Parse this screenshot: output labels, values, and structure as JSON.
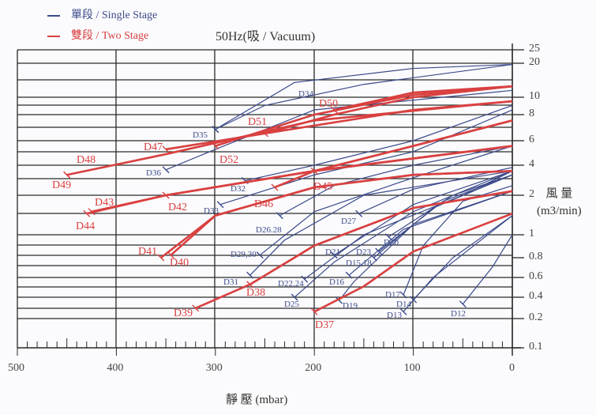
{
  "legend": {
    "single": {
      "label": "單段 / Single Stage",
      "color": "#3b4a8a"
    },
    "two": {
      "label": "雙段 / Two Stage",
      "color": "#d94040"
    }
  },
  "title": "50Hz(吸 / Vacuum)",
  "y_axis_label_line1": "風 量",
  "y_axis_label_line2": "(m3/min)",
  "x_axis_label": "靜 壓 (mbar)",
  "chart_data": {
    "type": "line",
    "title": "50Hz(吸 / Vacuum)",
    "xlabel": "靜 壓 (mbar)",
    "ylabel": "風 量 (m3/min)",
    "xlim": [
      500,
      0
    ],
    "ylim": [
      0.1,
      25
    ],
    "yscale": "log",
    "x_ticks": [
      "500",
      "400",
      "300",
      "200",
      "100",
      "0"
    ],
    "y_ticks": [
      "25",
      "20",
      "10",
      "8",
      "6",
      "4",
      "2",
      "1",
      "0.8",
      "0.6",
      "0.4",
      "0.2",
      "0.1"
    ],
    "legend": [
      "單段 / Single Stage",
      "雙段 / Two Stage"
    ],
    "grid": true,
    "series": [
      {
        "name": "D34",
        "stage": "single",
        "points": [
          [
            300,
            6.8
          ],
          [
            220,
            13.5
          ],
          [
            100,
            18
          ],
          [
            0,
            19.5
          ]
        ]
      },
      {
        "name": "D35",
        "stage": "single",
        "points": [
          [
            300,
            6.8
          ],
          [
            250,
            9
          ],
          [
            150,
            13
          ],
          [
            0,
            19.5
          ]
        ]
      },
      {
        "name": "D36",
        "stage": "single",
        "points": [
          [
            350,
            3.6
          ],
          [
            300,
            5.2
          ],
          [
            200,
            8.5
          ],
          [
            0,
            11.5
          ]
        ]
      },
      {
        "name": "D32",
        "stage": "single",
        "points": [
          [
            270,
            2.8
          ],
          [
            200,
            4
          ],
          [
            100,
            6
          ],
          [
            0,
            9
          ]
        ]
      },
      {
        "name": "D33",
        "stage": "single",
        "points": [
          [
            295,
            1.7
          ],
          [
            200,
            3.2
          ],
          [
            100,
            5
          ],
          [
            0,
            8.5
          ]
        ]
      },
      {
        "name": "D26.28",
        "stage": "single",
        "points": [
          [
            235,
            1.4
          ],
          [
            180,
            2.5
          ],
          [
            100,
            4
          ],
          [
            0,
            5.5
          ]
        ]
      },
      {
        "name": "D29,30",
        "stage": "single",
        "points": [
          [
            255,
            0.82
          ],
          [
            200,
            1.5
          ],
          [
            100,
            3
          ],
          [
            0,
            5.5
          ]
        ]
      },
      {
        "name": "D31",
        "stage": "single",
        "points": [
          [
            265,
            0.62
          ],
          [
            230,
            0.95
          ],
          [
            150,
            2
          ],
          [
            0,
            3.5
          ]
        ]
      },
      {
        "name": "D27",
        "stage": "single",
        "points": [
          [
            155,
            1.45
          ],
          [
            100,
            2.3
          ],
          [
            0,
            3.8
          ]
        ]
      },
      {
        "name": "D21",
        "stage": "single",
        "points": [
          [
            180,
            0.82
          ],
          [
            100,
            1.7
          ],
          [
            0,
            3.5
          ]
        ]
      },
      {
        "name": "D22,24",
        "stage": "single",
        "points": [
          [
            210,
            0.58
          ],
          [
            150,
            1.0
          ],
          [
            50,
            2
          ],
          [
            0,
            3.5
          ]
        ]
      },
      {
        "name": "D25",
        "stage": "single",
        "points": [
          [
            220,
            0.4
          ],
          [
            180,
            0.75
          ],
          [
            100,
            1.5
          ],
          [
            0,
            3.5
          ]
        ]
      },
      {
        "name": "D20",
        "stage": "single",
        "points": [
          [
            125,
            0.98
          ],
          [
            60,
            2
          ],
          [
            0,
            3.2
          ]
        ]
      },
      {
        "name": "D23",
        "stage": "single",
        "points": [
          [
            135,
            0.85
          ],
          [
            70,
            1.8
          ],
          [
            0,
            3.2
          ]
        ]
      },
      {
        "name": "D15,18",
        "stage": "single",
        "points": [
          [
            140,
            0.8
          ],
          [
            80,
            1.6
          ],
          [
            0,
            3.2
          ]
        ]
      },
      {
        "name": "D16",
        "stage": "single",
        "points": [
          [
            165,
            0.62
          ],
          [
            110,
            1.1
          ],
          [
            0,
            2.2
          ]
        ]
      },
      {
        "name": "D19",
        "stage": "single",
        "points": [
          [
            175,
            0.36
          ],
          [
            160,
            0.55
          ],
          [
            100,
            1.2
          ],
          [
            0,
            2.2
          ]
        ]
      },
      {
        "name": "D17",
        "stage": "single",
        "points": [
          [
            110,
            0.42
          ],
          [
            90,
            0.9
          ],
          [
            50,
            1.8
          ],
          [
            0,
            2.5
          ]
        ]
      },
      {
        "name": "D14",
        "stage": "single",
        "points": [
          [
            100,
            0.37
          ],
          [
            60,
            0.8
          ],
          [
            0,
            1.4
          ]
        ]
      },
      {
        "name": "D13",
        "stage": "single",
        "points": [
          [
            110,
            0.25
          ],
          [
            80,
            0.6
          ],
          [
            0,
            1.4
          ]
        ]
      },
      {
        "name": "D12",
        "stage": "single",
        "points": [
          [
            50,
            0.32
          ],
          [
            20,
            0.7
          ],
          [
            0,
            1.0
          ]
        ]
      },
      {
        "name": "D48",
        "stage": "two",
        "points": [
          [
            450,
            3.2
          ],
          [
            350,
            4.8
          ],
          [
            200,
            7.5
          ],
          [
            0,
            9.5
          ]
        ]
      },
      {
        "name": "D49",
        "stage": "two",
        "points": [
          [
            450,
            3.2
          ],
          [
            350,
            4.8
          ],
          [
            200,
            7.5
          ],
          [
            0,
            9.5
          ]
        ]
      },
      {
        "name": "D47",
        "stage": "two",
        "points": [
          [
            350,
            5.2
          ],
          [
            250,
            6.5
          ],
          [
            100,
            8.5
          ],
          [
            0,
            9.5
          ]
        ]
      },
      {
        "name": "D51",
        "stage": "two",
        "points": [
          [
            250,
            6.5
          ],
          [
            180,
            8
          ],
          [
            100,
            10
          ],
          [
            0,
            12.5
          ]
        ]
      },
      {
        "name": "D50",
        "stage": "two",
        "points": [
          [
            180,
            8.5
          ],
          [
            100,
            11
          ],
          [
            0,
            12.5
          ]
        ]
      },
      {
        "name": "D52",
        "stage": "two",
        "points": [
          [
            300,
            5.5
          ],
          [
            200,
            8
          ],
          [
            100,
            10.5
          ],
          [
            0,
            12.5
          ]
        ]
      },
      {
        "name": "D43",
        "stage": "two",
        "points": [
          [
            425,
            1.5
          ],
          [
            350,
            2.0
          ],
          [
            200,
            3.5
          ],
          [
            0,
            5.5
          ]
        ]
      },
      {
        "name": "D44",
        "stage": "two",
        "points": [
          [
            430,
            1.45
          ],
          [
            350,
            2.0
          ],
          [
            200,
            3.5
          ],
          [
            0,
            5.5
          ]
        ]
      },
      {
        "name": "D42",
        "stage": "two",
        "points": [
          [
            350,
            2.0
          ],
          [
            200,
            3.5
          ],
          [
            0,
            5.5
          ]
        ]
      },
      {
        "name": "D45",
        "stage": "two",
        "points": [
          [
            200,
            3.5
          ],
          [
            100,
            5.5
          ],
          [
            0,
            7.5
          ]
        ]
      },
      {
        "name": "D46",
        "stage": "two",
        "points": [
          [
            240,
            2.4
          ],
          [
            200,
            3.5
          ],
          [
            100,
            5.5
          ],
          [
            0,
            7.5
          ]
        ]
      },
      {
        "name": "D41",
        "stage": "two",
        "points": [
          [
            355,
            0.8
          ],
          [
            300,
            1.4
          ],
          [
            200,
            2.4
          ],
          [
            100,
            3.2
          ],
          [
            0,
            3.5
          ]
        ]
      },
      {
        "name": "D40",
        "stage": "two",
        "points": [
          [
            345,
            0.82
          ],
          [
            300,
            1.4
          ],
          [
            200,
            2.4
          ],
          [
            100,
            3.2
          ],
          [
            0,
            3.5
          ]
        ]
      },
      {
        "name": "D38",
        "stage": "two",
        "points": [
          [
            265,
            0.52
          ],
          [
            200,
            0.9
          ],
          [
            100,
            1.6
          ],
          [
            0,
            2.2
          ]
        ]
      },
      {
        "name": "D39",
        "stage": "two",
        "points": [
          [
            320,
            0.28
          ],
          [
            265,
            0.52
          ],
          [
            200,
            0.9
          ],
          [
            100,
            1.6
          ],
          [
            0,
            2.2
          ]
        ]
      },
      {
        "name": "D37",
        "stage": "two",
        "points": [
          [
            200,
            0.25
          ],
          [
            150,
            0.5
          ],
          [
            100,
            0.85
          ],
          [
            0,
            1.45
          ]
        ]
      }
    ]
  }
}
